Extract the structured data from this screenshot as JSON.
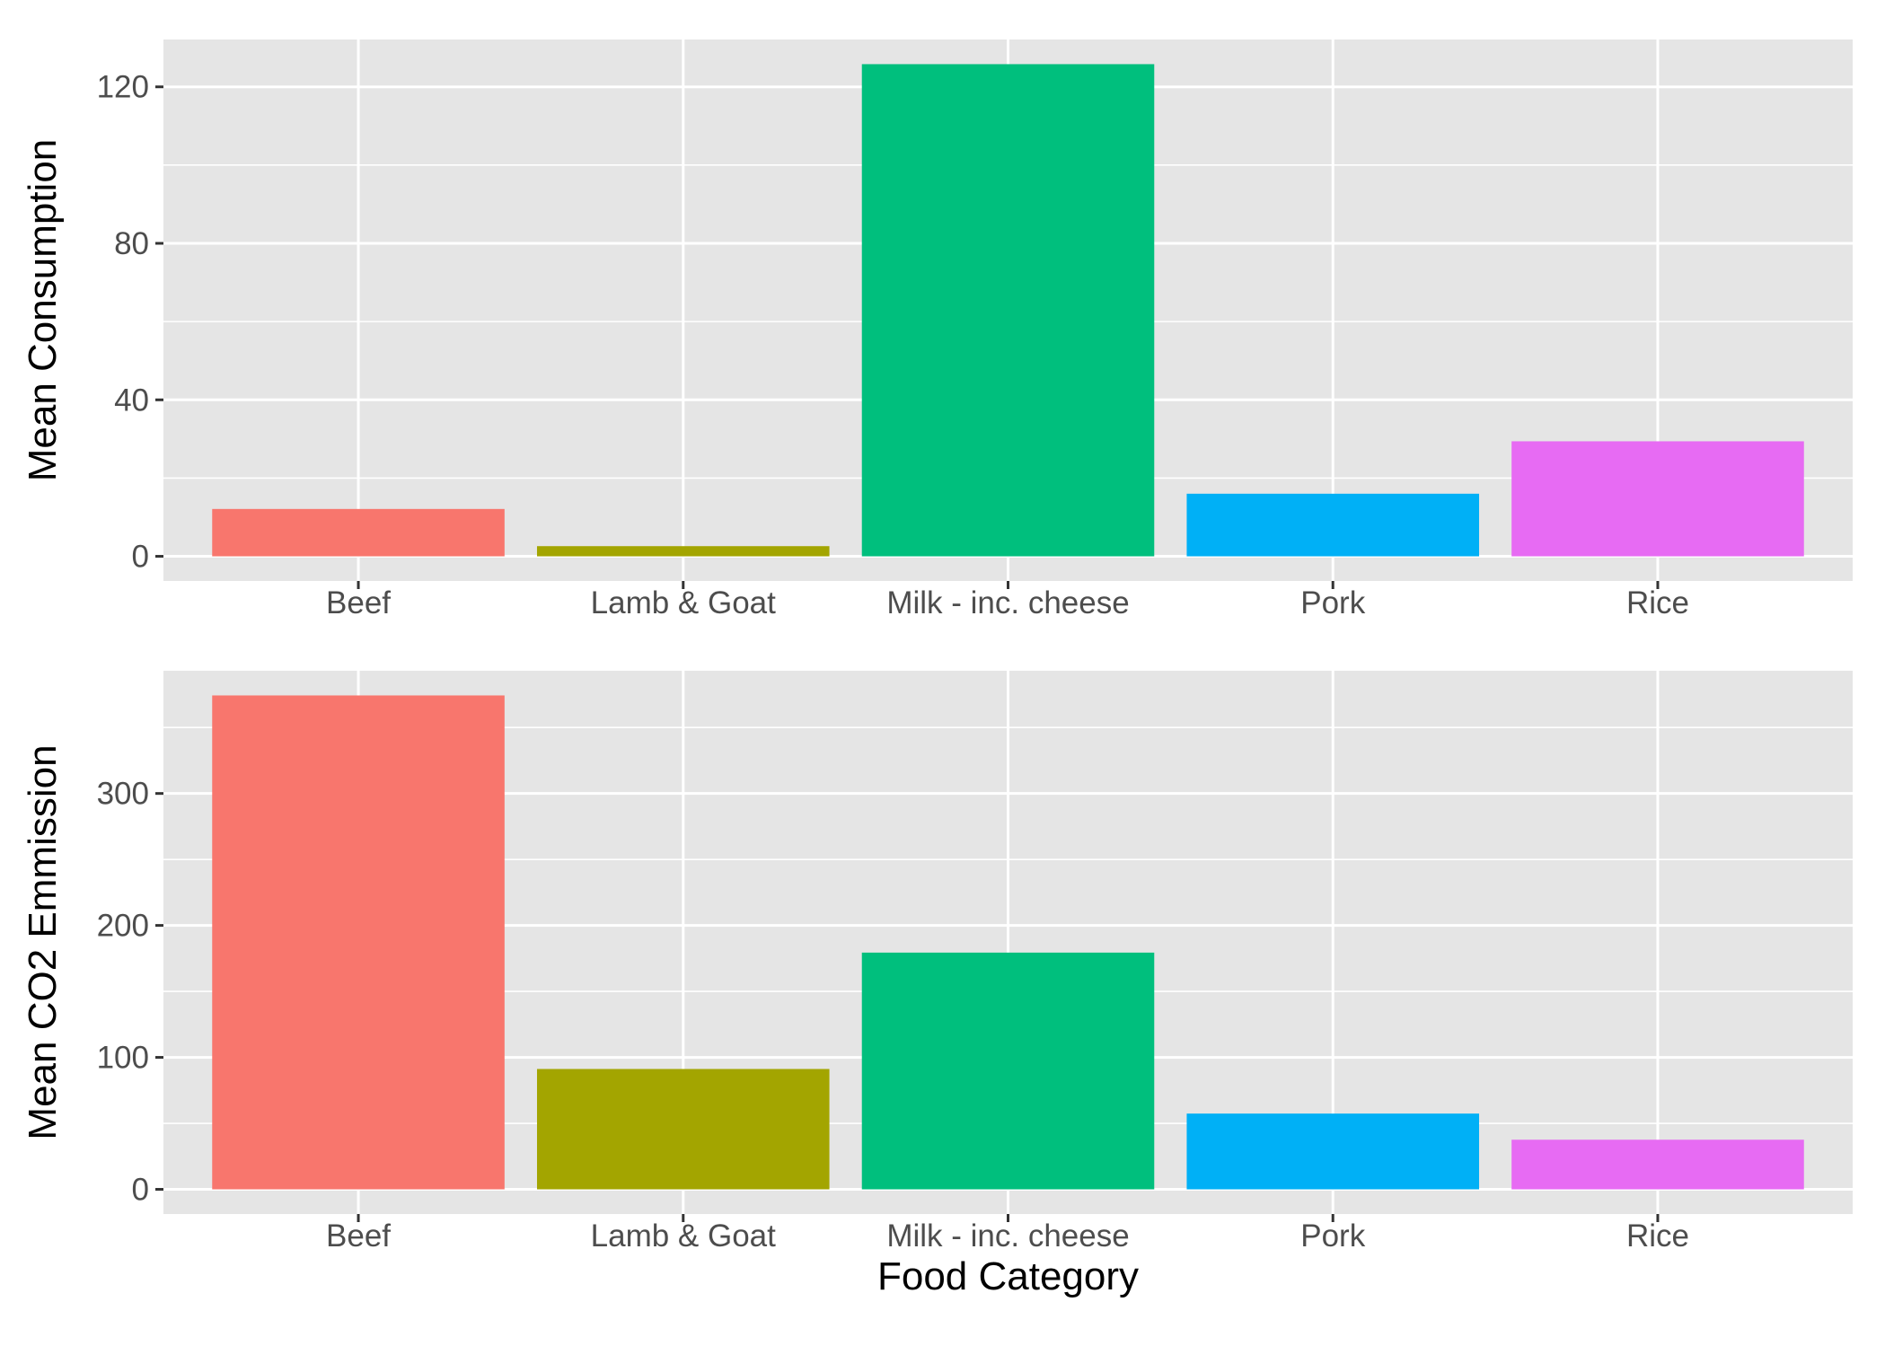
{
  "chart_data": [
    {
      "type": "bar",
      "categories": [
        "Beef",
        "Lamb & Goat",
        "Milk - inc. cheese",
        "Pork",
        "Rice"
      ],
      "values": [
        12.1,
        2.6,
        125.8,
        16.0,
        29.4
      ],
      "colors": [
        "#F8766D",
        "#A3A500",
        "#00BF7D",
        "#00B0F6",
        "#E76BF3"
      ],
      "title": "",
      "xlabel": "",
      "ylabel": "Mean Consumption",
      "ylim": [
        -6.3,
        132.1
      ],
      "yticks": [
        0,
        40,
        80,
        120
      ],
      "yminor": [
        20,
        60,
        100
      ],
      "grid": true,
      "legend": "none"
    },
    {
      "type": "bar",
      "categories": [
        "Beef",
        "Lamb & Goat",
        "Milk - inc. cheese",
        "Pork",
        "Rice"
      ],
      "values": [
        374.3,
        91.2,
        179.4,
        57.4,
        37.6
      ],
      "colors": [
        "#F8766D",
        "#A3A500",
        "#00BF7D",
        "#00B0F6",
        "#E76BF3"
      ],
      "title": "",
      "xlabel": "Food Category",
      "ylabel": "Mean CO2 Emmission",
      "ylim": [
        -18.7,
        393.0
      ],
      "yticks": [
        0,
        100,
        200,
        300
      ],
      "yminor": [
        50,
        150,
        250,
        350
      ],
      "grid": true,
      "legend": "none"
    }
  ]
}
